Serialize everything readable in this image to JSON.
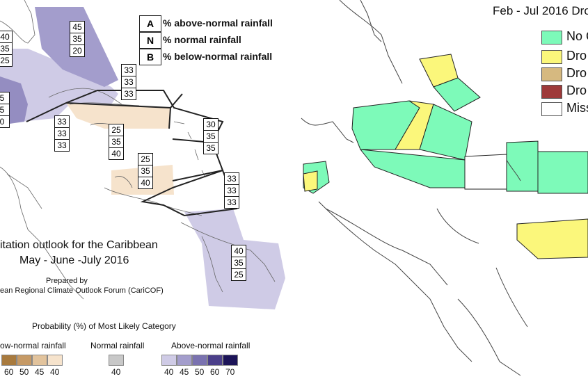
{
  "left_map": {
    "key": [
      {
        "letter": "A",
        "text": "% above-normal rainfall"
      },
      {
        "letter": "N",
        "text": "% normal rainfall"
      },
      {
        "letter": "B",
        "text": "% below-normal rainfall"
      }
    ],
    "probability_boxes": [
      {
        "values": [
          "40",
          "35",
          "25"
        ],
        "id": "west-edge-top"
      },
      {
        "values": [
          "45",
          "35",
          "20"
        ],
        "id": "bahamas"
      },
      {
        "values": [
          "5",
          "5",
          "0"
        ],
        "id": "west-edge-mid"
      },
      {
        "values": [
          "33",
          "33",
          "33"
        ],
        "id": "central-caribbean-north"
      },
      {
        "values": [
          "33",
          "33",
          "33"
        ],
        "id": "cuba-south"
      },
      {
        "values": [
          "25",
          "35",
          "40"
        ],
        "id": "jamaica"
      },
      {
        "values": [
          "30",
          "35",
          "35"
        ],
        "id": "lesser-antilles-north"
      },
      {
        "values": [
          "25",
          "35",
          "40"
        ],
        "id": "caribbean-south"
      },
      {
        "values": [
          "33",
          "33",
          "33"
        ],
        "id": "lesser-antilles-south"
      },
      {
        "values": [
          "40",
          "35",
          "25"
        ],
        "id": "guianas"
      }
    ],
    "title_line1": "itation outlook for the Caribbean",
    "title_line2": "May - June -July 2016",
    "prepared_by": "Prepared by",
    "forum": "ean Regional Climate Outlook Forum (CariCOF)",
    "legend_title": "Probability (%) of Most Likely Category",
    "legend": {
      "below_label": "ow-normal rainfall",
      "below_ticks": [
        "60",
        "50",
        "45",
        "40"
      ],
      "below_colors": [
        "#a87a3e",
        "#c69a66",
        "#e2c39c",
        "#f6e3cc"
      ],
      "normal_label": "Normal rainfall",
      "normal_ticks": [
        "40"
      ],
      "normal_colors": [
        "#c8c8c8"
      ],
      "above_label": "Above-normal rainfall",
      "above_ticks": [
        "40",
        "45",
        "50",
        "60",
        "70"
      ],
      "above_colors": [
        "#cfcbe6",
        "#a39dcc",
        "#7a72b0",
        "#4b3f8a",
        "#1c1458"
      ]
    }
  },
  "right_map": {
    "title": "Feb - Jul 2016 Dro",
    "legend": [
      {
        "label": "No C",
        "color": "#7dfab9"
      },
      {
        "label": "Dro",
        "color": "#fbf77b"
      },
      {
        "label": "Dro",
        "color": "#d6b980"
      },
      {
        "label": "Dro",
        "color": "#9e3a3a"
      },
      {
        "label": "Miss",
        "color": "#ffffff"
      }
    ]
  }
}
